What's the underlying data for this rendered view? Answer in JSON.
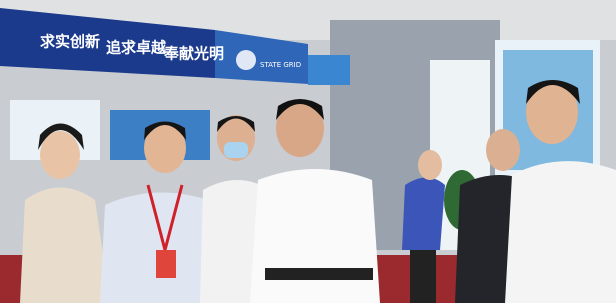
{
  "scene": {
    "banner": {
      "slogans": [
        "求实创新",
        "追求卓越",
        "奉献光明"
      ],
      "logo_text": "STATE GRID"
    }
  }
}
